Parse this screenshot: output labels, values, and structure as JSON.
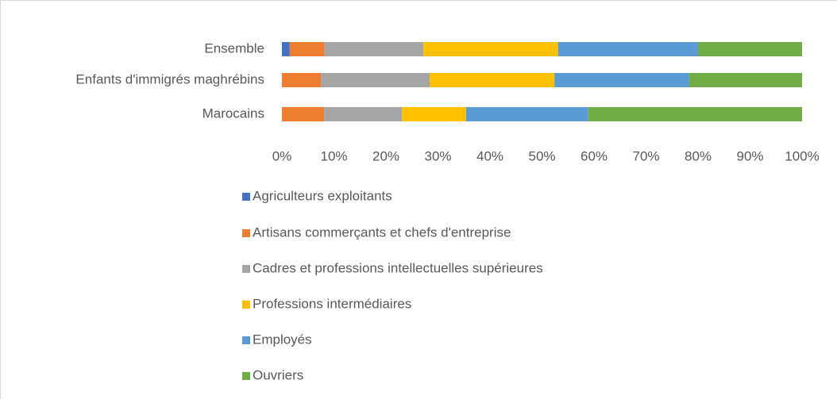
{
  "chart_data": {
    "type": "stacked_barh",
    "categories": [
      "Ensemble",
      "Enfants d'immigrés maghrébins",
      "Marocains"
    ],
    "series": [
      {
        "name": "Agriculteurs exploitants",
        "color": "#4472c4",
        "values": [
          1.5,
          0,
          0
        ]
      },
      {
        "name": "Artisans commerçants et chefs d'entreprise",
        "color": "#ed7d31",
        "values": [
          6.7,
          7.5,
          8.1
        ]
      },
      {
        "name": "Cadres et professions intellectuelles supérieures",
        "color": "#a5a5a5",
        "values": [
          19.0,
          20.9,
          15.0
        ]
      },
      {
        "name": "Professions intermédiaires",
        "color": "#ffc000",
        "values": [
          25.9,
          24.0,
          12.3
        ]
      },
      {
        "name": "Employés",
        "color": "#5b9bd5",
        "values": [
          26.9,
          25.9,
          23.5
        ]
      },
      {
        "name": "Ouvriers",
        "color": "#70ad47",
        "values": [
          20.0,
          21.7,
          41.1
        ]
      }
    ],
    "xlim": [
      0,
      100
    ],
    "xticks": [
      {
        "value": 0,
        "label": "0%"
      },
      {
        "value": 10,
        "label": "10%"
      },
      {
        "value": 20,
        "label": "20%"
      },
      {
        "value": 30,
        "label": "30%"
      },
      {
        "value": 40,
        "label": "40%"
      },
      {
        "value": 50,
        "label": "50%"
      },
      {
        "value": 60,
        "label": "60%"
      },
      {
        "value": 70,
        "label": "70%"
      },
      {
        "value": 80,
        "label": "80%"
      },
      {
        "value": 90,
        "label": "90%"
      },
      {
        "value": 100,
        "label": "100%"
      }
    ],
    "legend": "bottom"
  }
}
